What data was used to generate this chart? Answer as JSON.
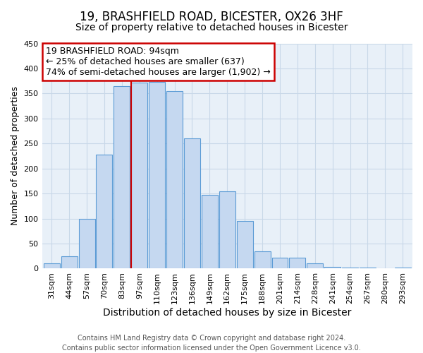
{
  "title": "19, BRASHFIELD ROAD, BICESTER, OX26 3HF",
  "subtitle": "Size of property relative to detached houses in Bicester",
  "xlabel": "Distribution of detached houses by size in Bicester",
  "ylabel": "Number of detached properties",
  "categories": [
    "31sqm",
    "44sqm",
    "57sqm",
    "70sqm",
    "83sqm",
    "97sqm",
    "110sqm",
    "123sqm",
    "136sqm",
    "149sqm",
    "162sqm",
    "175sqm",
    "188sqm",
    "201sqm",
    "214sqm",
    "228sqm",
    "241sqm",
    "254sqm",
    "267sqm",
    "280sqm",
    "293sqm"
  ],
  "values": [
    10,
    25,
    100,
    228,
    365,
    372,
    373,
    355,
    260,
    147,
    155,
    95,
    35,
    22,
    22,
    10,
    4,
    2,
    2,
    1,
    2
  ],
  "bar_color": "#c5d8f0",
  "bar_edge_color": "#5b9bd5",
  "highlight_index": 5,
  "highlight_line_color": "#cc0000",
  "ylim": [
    0,
    450
  ],
  "yticks": [
    0,
    50,
    100,
    150,
    200,
    250,
    300,
    350,
    400,
    450
  ],
  "annotation_title": "19 BRASHFIELD ROAD: 94sqm",
  "annotation_line1": "← 25% of detached houses are smaller (637)",
  "annotation_line2": "74% of semi-detached houses are larger (1,902) →",
  "annotation_box_color": "#ffffff",
  "annotation_box_edge": "#cc0000",
  "footer_line1": "Contains HM Land Registry data © Crown copyright and database right 2024.",
  "footer_line2": "Contains public sector information licensed under the Open Government Licence v3.0.",
  "background_color": "#ffffff",
  "axes_bg_color": "#e8f0f8",
  "grid_color": "#c8d8e8",
  "title_fontsize": 12,
  "subtitle_fontsize": 10,
  "xlabel_fontsize": 10,
  "ylabel_fontsize": 9,
  "tick_fontsize": 8,
  "footer_fontsize": 7,
  "annotation_fontsize": 9
}
